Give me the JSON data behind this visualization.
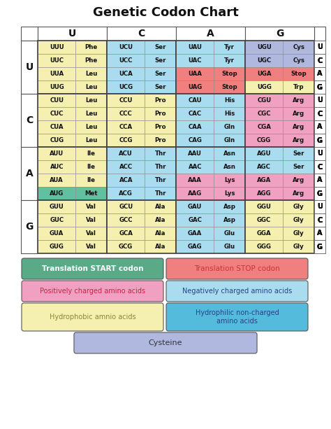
{
  "title": "Genetic Codon Chart",
  "col_headers": [
    "U",
    "C",
    "A",
    "G"
  ],
  "row_headers": [
    "U",
    "C",
    "A",
    "G"
  ],
  "codons": [
    [
      "UUU",
      "UUC",
      "UUA",
      "UUG"
    ],
    [
      "UCU",
      "UCC",
      "UCA",
      "UCG"
    ],
    [
      "UAU",
      "UAC",
      "UAA",
      "UAG"
    ],
    [
      "UGU",
      "UGC",
      "UGA",
      "UGG"
    ],
    [
      "CUU",
      "CUC",
      "CUA",
      "CUG"
    ],
    [
      "CCU",
      "CCC",
      "CCA",
      "CCG"
    ],
    [
      "CAU",
      "CAC",
      "CAA",
      "CAG"
    ],
    [
      "CGU",
      "CGC",
      "CGA",
      "CGG"
    ],
    [
      "AUU",
      "AUC",
      "AUA",
      "AUG"
    ],
    [
      "ACU",
      "ACC",
      "ACA",
      "ACG"
    ],
    [
      "AAU",
      "AAC",
      "AAA",
      "AAG"
    ],
    [
      "AGU",
      "AGC",
      "AGA",
      "AGG"
    ],
    [
      "GUU",
      "GUC",
      "GUA",
      "GUG"
    ],
    [
      "GCU",
      "GCC",
      "GCA",
      "GCG"
    ],
    [
      "GAU",
      "GAC",
      "GAA",
      "GAG"
    ],
    [
      "GGU",
      "GGC",
      "GGA",
      "GGG"
    ]
  ],
  "amino_acids": [
    [
      "Phe",
      "Phe",
      "Leu",
      "Leu"
    ],
    [
      "Ser",
      "Ser",
      "Ser",
      "Ser"
    ],
    [
      "Tyr",
      "Tyr",
      "Stop",
      "Stop"
    ],
    [
      "Cys",
      "Cys",
      "Stop",
      "Trp"
    ],
    [
      "Leu",
      "Leu",
      "Leu",
      "Leu"
    ],
    [
      "Pro",
      "Pro",
      "Pro",
      "Pro"
    ],
    [
      "His",
      "His",
      "Gln",
      "Gln"
    ],
    [
      "Arg",
      "Arg",
      "Arg",
      "Arg"
    ],
    [
      "Ile",
      "Ile",
      "Ile",
      "Met"
    ],
    [
      "Thr",
      "Thr",
      "Thr",
      "Thr"
    ],
    [
      "Asn",
      "Asn",
      "Lys",
      "Lys"
    ],
    [
      "Ser",
      "Ser",
      "Arg",
      "Arg"
    ],
    [
      "Val",
      "Val",
      "Val",
      "Val"
    ],
    [
      "Ala",
      "Ala",
      "Ala",
      "Ala"
    ],
    [
      "Asp",
      "Asp",
      "Glu",
      "Glu"
    ],
    [
      "Gly",
      "Gly",
      "Gly",
      "Gly"
    ]
  ],
  "cell_colors": {
    "UUU": "#f5f0b0",
    "UUC": "#f5f0b0",
    "UUA": "#f5f0b0",
    "UUG": "#f5f0b0",
    "UCU": "#aadcf0",
    "UCC": "#aadcf0",
    "UCA": "#aadcf0",
    "UCG": "#aadcf0",
    "UAU": "#aadcf0",
    "UAC": "#aadcf0",
    "UAA": "#f08080",
    "UAG": "#f08080",
    "UGU": "#b0b8e0",
    "UGC": "#b0b8e0",
    "UGA": "#f08080",
    "UGG": "#f5f0b0",
    "CUU": "#f5f0b0",
    "CUC": "#f5f0b0",
    "CUA": "#f5f0b0",
    "CUG": "#f5f0b0",
    "CCU": "#f5f0b0",
    "CCC": "#f5f0b0",
    "CCA": "#f5f0b0",
    "CCG": "#f5f0b0",
    "CAU": "#aadcf0",
    "CAC": "#aadcf0",
    "CAA": "#aadcf0",
    "CAG": "#aadcf0",
    "CGU": "#f0a0c0",
    "CGC": "#f0a0c0",
    "CGA": "#f0a0c0",
    "CGG": "#f0a0c0",
    "AUU": "#f5f0b0",
    "AUC": "#f5f0b0",
    "AUA": "#f5f0b0",
    "AUG": "#60c0a0",
    "ACU": "#aadcf0",
    "ACC": "#aadcf0",
    "ACA": "#aadcf0",
    "ACG": "#aadcf0",
    "AAU": "#aadcf0",
    "AAC": "#aadcf0",
    "AAA": "#f0a0c0",
    "AAG": "#f0a0c0",
    "AGU": "#aadcf0",
    "AGC": "#aadcf0",
    "AGA": "#f0a0c0",
    "AGG": "#f0a0c0",
    "GUU": "#f5f0b0",
    "GUC": "#f5f0b0",
    "GUA": "#f5f0b0",
    "GUG": "#f5f0b0",
    "GCU": "#f5f0b0",
    "GCC": "#f5f0b0",
    "GCA": "#f5f0b0",
    "GCG": "#f5f0b0",
    "GAU": "#aadcf0",
    "GAC": "#aadcf0",
    "GAA": "#aadcf0",
    "GAG": "#aadcf0",
    "GGU": "#f5f0b0",
    "GGC": "#f5f0b0",
    "GGA": "#f5f0b0",
    "GGG": "#f5f0b0"
  },
  "legend_items": [
    {
      "text": "Translation START codon",
      "color": "#5aaa88",
      "text_color": "#ffffff",
      "bold": true
    },
    {
      "text": "Translation STOP codon",
      "color": "#f08080",
      "text_color": "#cc3333",
      "bold": false
    },
    {
      "text": "Positively charged amino acids",
      "color": "#f0a0c0",
      "text_color": "#cc2244",
      "bold": false
    },
    {
      "text": "Negatively charged amino acids",
      "color": "#aadcf0",
      "text_color": "#224488",
      "bold": false
    },
    {
      "text": "Hydrophobic amnio acids",
      "color": "#f5f0b0",
      "text_color": "#888833",
      "bold": false
    },
    {
      "text": "Hydrophilic non-charged\namino acids",
      "color": "#55bbdd",
      "text_color": "#224488",
      "bold": false
    },
    {
      "text": "Cysteine",
      "color": "#b0b8e0",
      "text_color": "#333333",
      "bold": false
    }
  ],
  "bg_color": "#ffffff",
  "fig_w": 4.74,
  "fig_h": 6.13,
  "dpi": 100
}
